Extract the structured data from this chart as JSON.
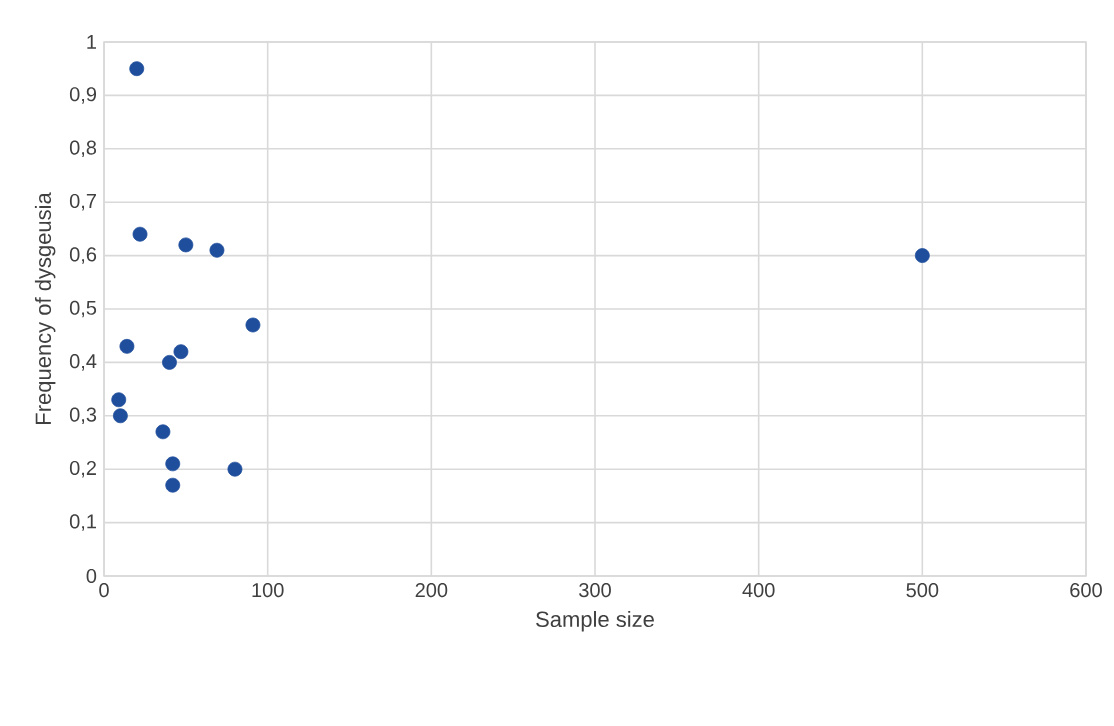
{
  "chart_data": {
    "type": "scatter",
    "xlabel": "Sample size",
    "ylabel": "Frequency of dysgeusia",
    "x": [
      20,
      22,
      50,
      69,
      91,
      14,
      47,
      40,
      9,
      10,
      36,
      42,
      80,
      42,
      500
    ],
    "values": [
      0.95,
      0.64,
      0.62,
      0.61,
      0.47,
      0.43,
      0.42,
      0.4,
      0.33,
      0.3,
      0.27,
      0.21,
      0.2,
      0.17,
      0.6
    ],
    "color": "#1f4e9c",
    "grid": true,
    "xlim": [
      0,
      600
    ],
    "xticks": [
      0,
      100,
      200,
      300,
      400,
      500,
      600
    ],
    "ylim": [
      0,
      1
    ],
    "yticks": [
      0,
      {
        "value": 0.1,
        "label": "0,1"
      },
      {
        "value": 0.2,
        "label": "0,2"
      },
      {
        "value": 0.3,
        "label": "0,3"
      },
      {
        "value": 0.4,
        "label": "0,4"
      },
      {
        "value": 0.5,
        "label": "0,5"
      },
      {
        "value": 0.6,
        "label": "0,6"
      },
      {
        "value": 0.7,
        "label": "0,7"
      },
      {
        "value": 0.8,
        "label": "0,8"
      },
      {
        "value": 0.9,
        "label": "0,9"
      },
      1
    ]
  }
}
